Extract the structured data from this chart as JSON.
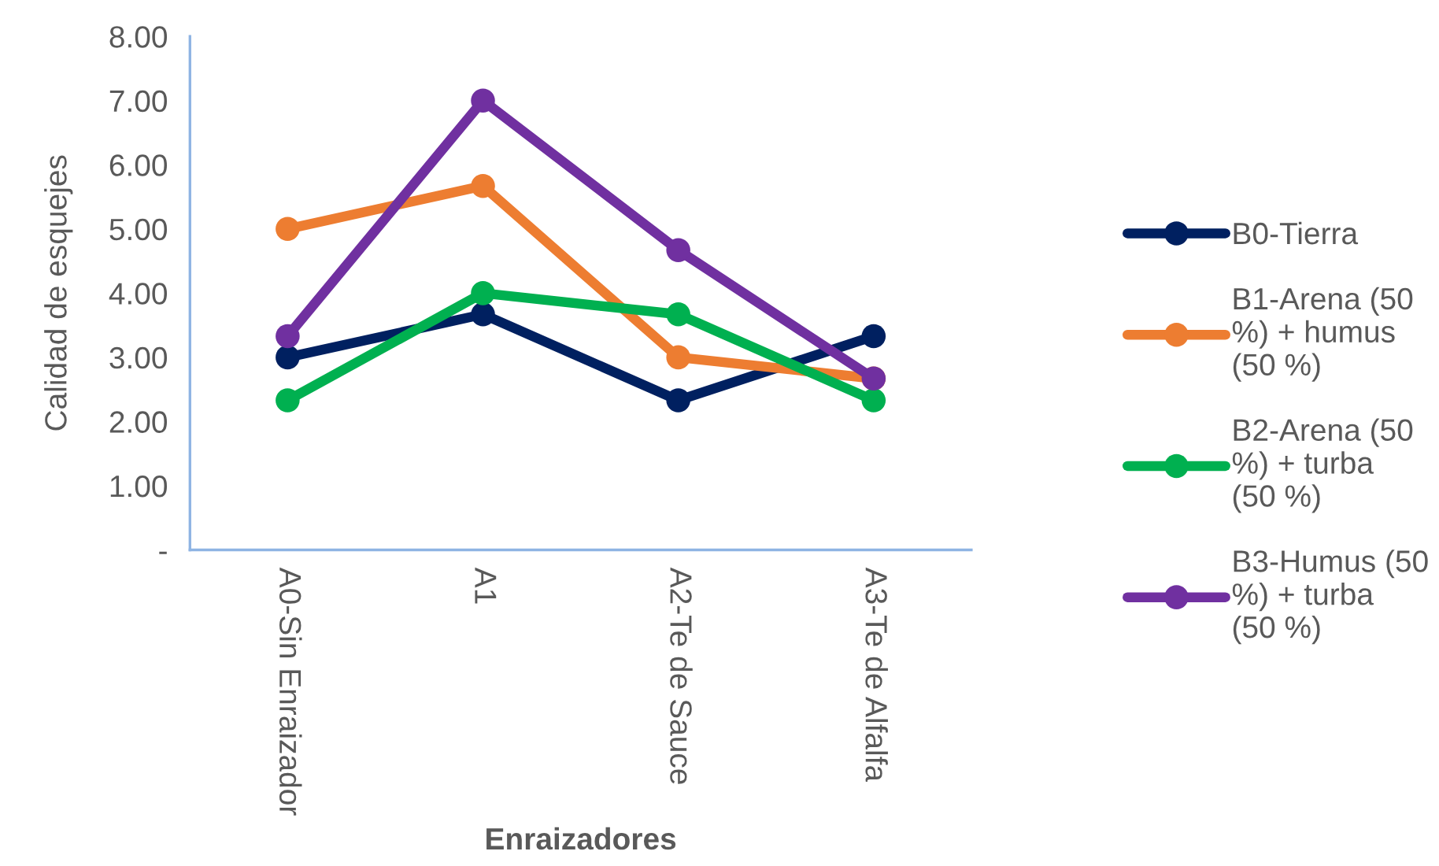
{
  "chart_data": {
    "type": "line",
    "xlabel": "Enraizadores",
    "ylabel": "Calidad de esquejes",
    "categories": [
      "A0-Sin Enraizador",
      "A1",
      "A2-Te de Sauce",
      "A3-Te de Alfalfa"
    ],
    "series": [
      {
        "name": "B0-Tierra",
        "color": "#002060",
        "values": [
          3.0,
          3.67,
          2.33,
          3.33
        ]
      },
      {
        "name": "B1-Arena (50 %) + humus (50 %)",
        "color": "#ED7D31",
        "values": [
          5.0,
          5.67,
          3.0,
          2.67
        ]
      },
      {
        "name": "B2-Arena (50 %) + turba (50 %)",
        "color": "#00B050",
        "values": [
          2.33,
          4.0,
          3.67,
          2.33
        ]
      },
      {
        "name": "B3-Humus (50 %) + turba (50 %)",
        "color": "#7030A0",
        "values": [
          3.33,
          7.0,
          4.67,
          2.67
        ]
      }
    ],
    "ylim": [
      0,
      8
    ],
    "yticks": [
      {
        "value": 0,
        "label": "-"
      },
      {
        "value": 1,
        "label": "1.00"
      },
      {
        "value": 2,
        "label": "2.00"
      },
      {
        "value": 3,
        "label": "3.00"
      },
      {
        "value": 4,
        "label": "4.00"
      },
      {
        "value": 5,
        "label": "5.00"
      },
      {
        "value": 6,
        "label": "6.00"
      },
      {
        "value": 7,
        "label": "7.00"
      },
      {
        "value": 8,
        "label": "8.00"
      }
    ],
    "grid": false,
    "legend": "right",
    "marker": "circle",
    "line_style": "solid"
  }
}
